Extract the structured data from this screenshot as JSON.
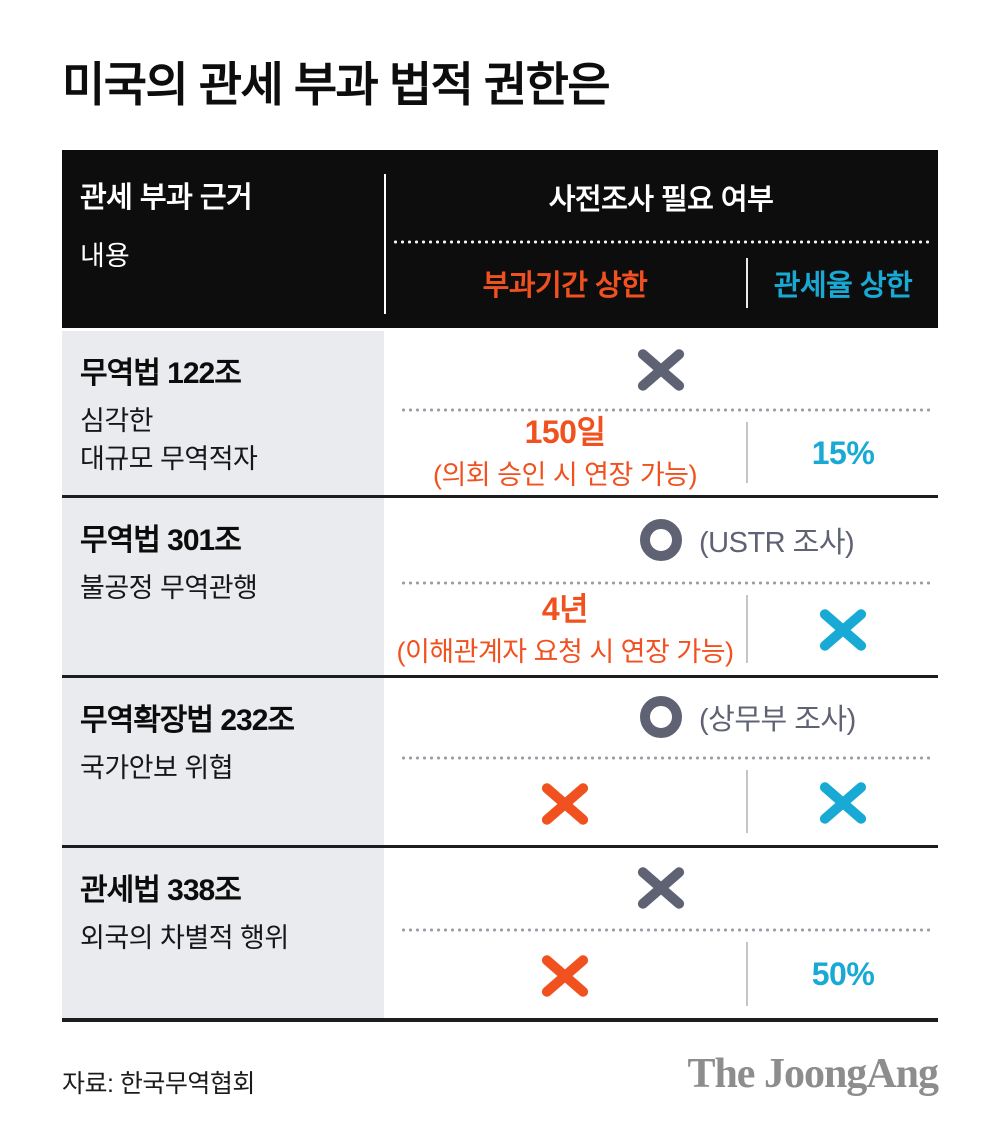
{
  "title": "미국의 관세 부과 법적 권한은",
  "colors": {
    "orange": "#f1511f",
    "cyan": "#18aad4",
    "slate": "#5f6273",
    "headerBg": "#0d0d0e",
    "cellBg": "#e9ebee",
    "border": "#1c1d1f",
    "dot": "#9ba0a8",
    "lightDivider": "#c3c5cb",
    "logoGray": "#8d8d8d"
  },
  "table": {
    "header": {
      "col1_title": "관세 부과 근거",
      "col1_sub": "내용",
      "col2_title": "사전조사 필요 여부",
      "sub_col_period": "부과기간 상한",
      "sub_col_rate": "관세율 상한"
    },
    "rows": [
      {
        "law": "무역법 122조",
        "desc": "심각한\n대규모 무역적자",
        "investigation": {
          "mark": "x",
          "label": ""
        },
        "period": {
          "value": "150일",
          "note": "(의회 승인 시 연장 가능)",
          "mark": ""
        },
        "rate": {
          "value": "15%",
          "mark": ""
        }
      },
      {
        "law": "무역법 301조",
        "desc": "불공정 무역관행",
        "investigation": {
          "mark": "o",
          "label": "(USTR 조사)"
        },
        "period": {
          "value": "4년",
          "note": "(이해관계자 요청 시 연장 가능)",
          "mark": ""
        },
        "rate": {
          "value": "",
          "mark": "x"
        }
      },
      {
        "law": "무역확장법 232조",
        "desc": "국가안보 위협",
        "investigation": {
          "mark": "o",
          "label": "(상무부 조사)"
        },
        "period": {
          "value": "",
          "note": "",
          "mark": "x"
        },
        "rate": {
          "value": "",
          "mark": "x"
        }
      },
      {
        "law": "관세법 338조",
        "desc": "외국의 차별적 행위",
        "investigation": {
          "mark": "x",
          "label": ""
        },
        "period": {
          "value": "",
          "note": "",
          "mark": "x"
        },
        "rate": {
          "value": "50%",
          "mark": ""
        }
      }
    ]
  },
  "footer": {
    "source": "자료: 한국무역협회",
    "logo": "The JoongAng"
  },
  "chart_data": {
    "type": "table",
    "title": "미국의 관세 부과 법적 권한은",
    "columns": [
      "관세 부과 근거 / 내용",
      "사전조사 필요 여부",
      "부과기간 상한",
      "관세율 상한"
    ],
    "rows": [
      [
        "무역법 122조 — 심각한 대규모 무역적자",
        "X",
        "150일 (의회 승인 시 연장 가능)",
        "15%"
      ],
      [
        "무역법 301조 — 불공정 무역관행",
        "O (USTR 조사)",
        "4년 (이해관계자 요청 시 연장 가능)",
        "X"
      ],
      [
        "무역확장법 232조 — 국가안보 위협",
        "O (상무부 조사)",
        "X",
        "X"
      ],
      [
        "관세법 338조 — 외국의 차별적 행위",
        "X",
        "X",
        "50%"
      ]
    ],
    "source": "자료: 한국무역협회",
    "legend": "orange = 부과기간 상한, cyan = 관세율 상한, gray = 사전조사 필요 여부"
  }
}
